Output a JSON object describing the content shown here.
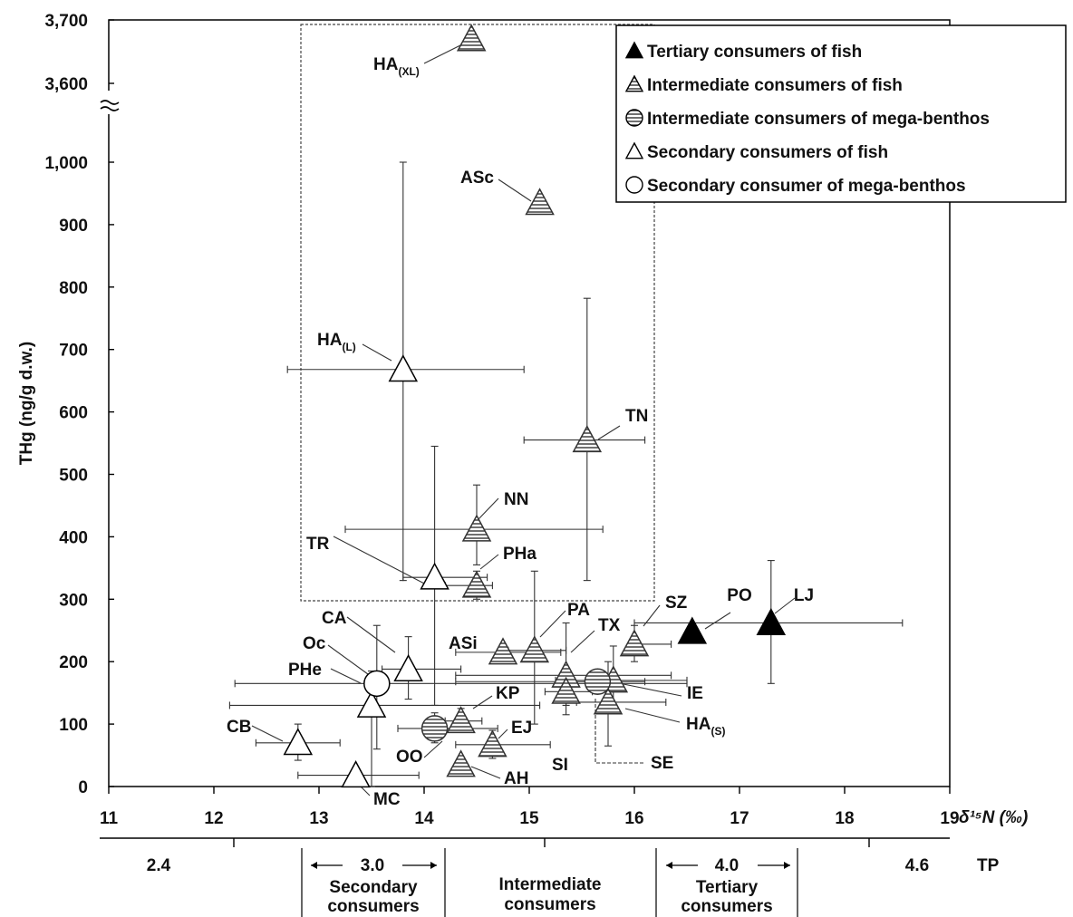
{
  "chart_data": {
    "type": "scatter",
    "xlabel": "δ¹⁵N (‰)",
    "ylabel": "THg (ng/g d.w.)",
    "x_ticks": [
      "11",
      "12",
      "13",
      "14",
      "15",
      "16",
      "17",
      "18",
      "19"
    ],
    "y_ticks": [
      "0",
      "100",
      "200",
      "300",
      "400",
      "500",
      "600",
      "700",
      "800",
      "900",
      "1,000",
      "3,600",
      "3,700"
    ],
    "xlim": [
      11,
      19
    ],
    "ylim": [
      0,
      3700
    ],
    "y_axis_break": [
      1000,
      3600
    ],
    "grid": false,
    "legend_position": "top-right",
    "series": [
      {
        "name": "Tertiary consumers of fish",
        "marker": "filled-triangle",
        "color": "#000000"
      },
      {
        "name": "Intermediate consumers of fish",
        "marker": "hatched-triangle",
        "color": "#555555"
      },
      {
        "name": "Intermediate consumers of mega-benthos",
        "marker": "hatched-circle",
        "color": "#555555"
      },
      {
        "name": "Secondary consumers of fish",
        "marker": "open-triangle",
        "color": "#000000"
      },
      {
        "name": "Secondary consumer of mega-benthos",
        "marker": "open-circle",
        "color": "#000000"
      }
    ],
    "points": [
      {
        "label": "LJ",
        "sub": "",
        "series": 0,
        "x": 17.3,
        "y": 262,
        "xerr": [
          16.0,
          18.55
        ],
        "yerr": [
          165,
          362
        ]
      },
      {
        "label": "PO",
        "sub": "",
        "series": 0,
        "x": 16.55,
        "y": 248
      },
      {
        "label": "HA",
        "sub": "(XL)",
        "series": 1,
        "x": 14.45,
        "y": 3670
      },
      {
        "label": "ASc",
        "sub": "",
        "series": 1,
        "x": 15.1,
        "y": 935
      },
      {
        "label": "TN",
        "sub": "",
        "series": 1,
        "x": 15.55,
        "y": 555,
        "xerr": [
          14.95,
          16.1
        ],
        "yerr": [
          330,
          782
        ]
      },
      {
        "label": "NN",
        "sub": "",
        "series": 1,
        "x": 14.5,
        "y": 412,
        "xerr": [
          13.25,
          15.7
        ],
        "yerr": [
          355,
          483
        ]
      },
      {
        "label": "PHa",
        "sub": "",
        "series": 1,
        "x": 14.5,
        "y": 322,
        "xerr": [
          14.2,
          14.65
        ],
        "yerr": [
          300,
          345
        ]
      },
      {
        "label": "SZ",
        "sub": "",
        "series": 1,
        "x": 16.0,
        "y": 228,
        "xerr": [
          15.95,
          16.35
        ],
        "yerr": [
          200,
          258
        ]
      },
      {
        "label": "ASi",
        "sub": "",
        "series": 1,
        "x": 14.75,
        "y": 215,
        "xerr": [
          14.3,
          15.3
        ],
        "yerr": [
          205,
          228
        ]
      },
      {
        "label": "PA",
        "sub": "",
        "series": 1,
        "x": 15.05,
        "y": 218,
        "xerr": [
          14.8,
          15.35
        ],
        "yerr": [
          100,
          345
        ]
      },
      {
        "label": "TX",
        "sub": "",
        "series": 1,
        "x": 15.35,
        "y": 178,
        "xerr": [
          14.3,
          16.35
        ],
        "yerr": [
          130,
          262
        ]
      },
      {
        "label": "IE",
        "sub": "",
        "series": 1,
        "x": 15.8,
        "y": 170,
        "xerr": [
          15.25,
          16.5
        ],
        "yerr": [
          118,
          225
        ]
      },
      {
        "label": "HA",
        "sub": "(S)",
        "series": 1,
        "x": 15.75,
        "y": 135,
        "xerr": [
          15.45,
          16.3
        ],
        "yerr": [
          65,
          200
        ]
      },
      {
        "label": "SI",
        "sub": "",
        "series": 1,
        "x": 15.35,
        "y": 152,
        "xerr": [
          15.15,
          15.6
        ],
        "yerr": [
          115,
          190
        ]
      },
      {
        "label": "KP",
        "sub": "",
        "series": 1,
        "x": 14.35,
        "y": 105,
        "xerr": [
          14.2,
          14.55
        ],
        "yerr": [
          90,
          125
        ]
      },
      {
        "label": "EJ",
        "sub": "",
        "series": 1,
        "x": 14.65,
        "y": 67,
        "xerr": [
          14.3,
          15.2
        ],
        "yerr": [
          45,
          90
        ]
      },
      {
        "label": "AH",
        "sub": "",
        "series": 1,
        "x": 14.35,
        "y": 35
      },
      {
        "label": "OO",
        "sub": "",
        "series": 2,
        "x": 14.1,
        "y": 93,
        "xerr": [
          13.75,
          14.7
        ],
        "yerr": [
          70,
          118
        ]
      },
      {
        "label": "SE",
        "sub": "",
        "series": 2,
        "x": 15.65,
        "y": 168,
        "xerr": [
          14.3,
          16.1
        ]
      },
      {
        "label": "HA",
        "sub": "(L)",
        "series": 3,
        "x": 13.8,
        "y": 668,
        "xerr": [
          12.7,
          14.95
        ],
        "yerr": [
          330,
          1010
        ]
      },
      {
        "label": "TR",
        "sub": "",
        "series": 3,
        "x": 14.1,
        "y": 335,
        "xerr": [
          13.8,
          14.6
        ],
        "yerr": [
          130,
          545
        ]
      },
      {
        "label": "CA",
        "sub": "",
        "series": 3,
        "x": 13.85,
        "y": 188,
        "xerr": [
          13.6,
          14.35
        ],
        "yerr": [
          140,
          240
        ]
      },
      {
        "label": "PHe",
        "sub": "",
        "series": 3,
        "x": 13.5,
        "y": 130,
        "xerr": [
          12.15,
          15.1
        ],
        "yerr": [
          0,
          185
        ]
      },
      {
        "label": "CB",
        "sub": "",
        "series": 3,
        "x": 12.8,
        "y": 70,
        "xerr": [
          12.4,
          13.2
        ],
        "yerr": [
          42,
          100
        ]
      },
      {
        "label": "MC",
        "sub": "",
        "series": 3,
        "x": 13.35,
        "y": 18,
        "xerr": [
          12.8,
          13.95
        ]
      },
      {
        "label": "Oc",
        "sub": "",
        "series": 4,
        "x": 13.55,
        "y": 165,
        "xerr": [
          12.2,
          16.5
        ],
        "yerr": [
          60,
          258
        ]
      }
    ],
    "tp_axis": {
      "title": "TP",
      "labels": [
        "2.4",
        "3.0",
        "4.0",
        "4.6"
      ],
      "groups": [
        {
          "line1": "Secondary",
          "line2": "consumers"
        },
        {
          "line1": "Intermediate",
          "line2": "consumers"
        },
        {
          "line1": "Tertiary",
          "line2": "consumers"
        }
      ]
    }
  }
}
